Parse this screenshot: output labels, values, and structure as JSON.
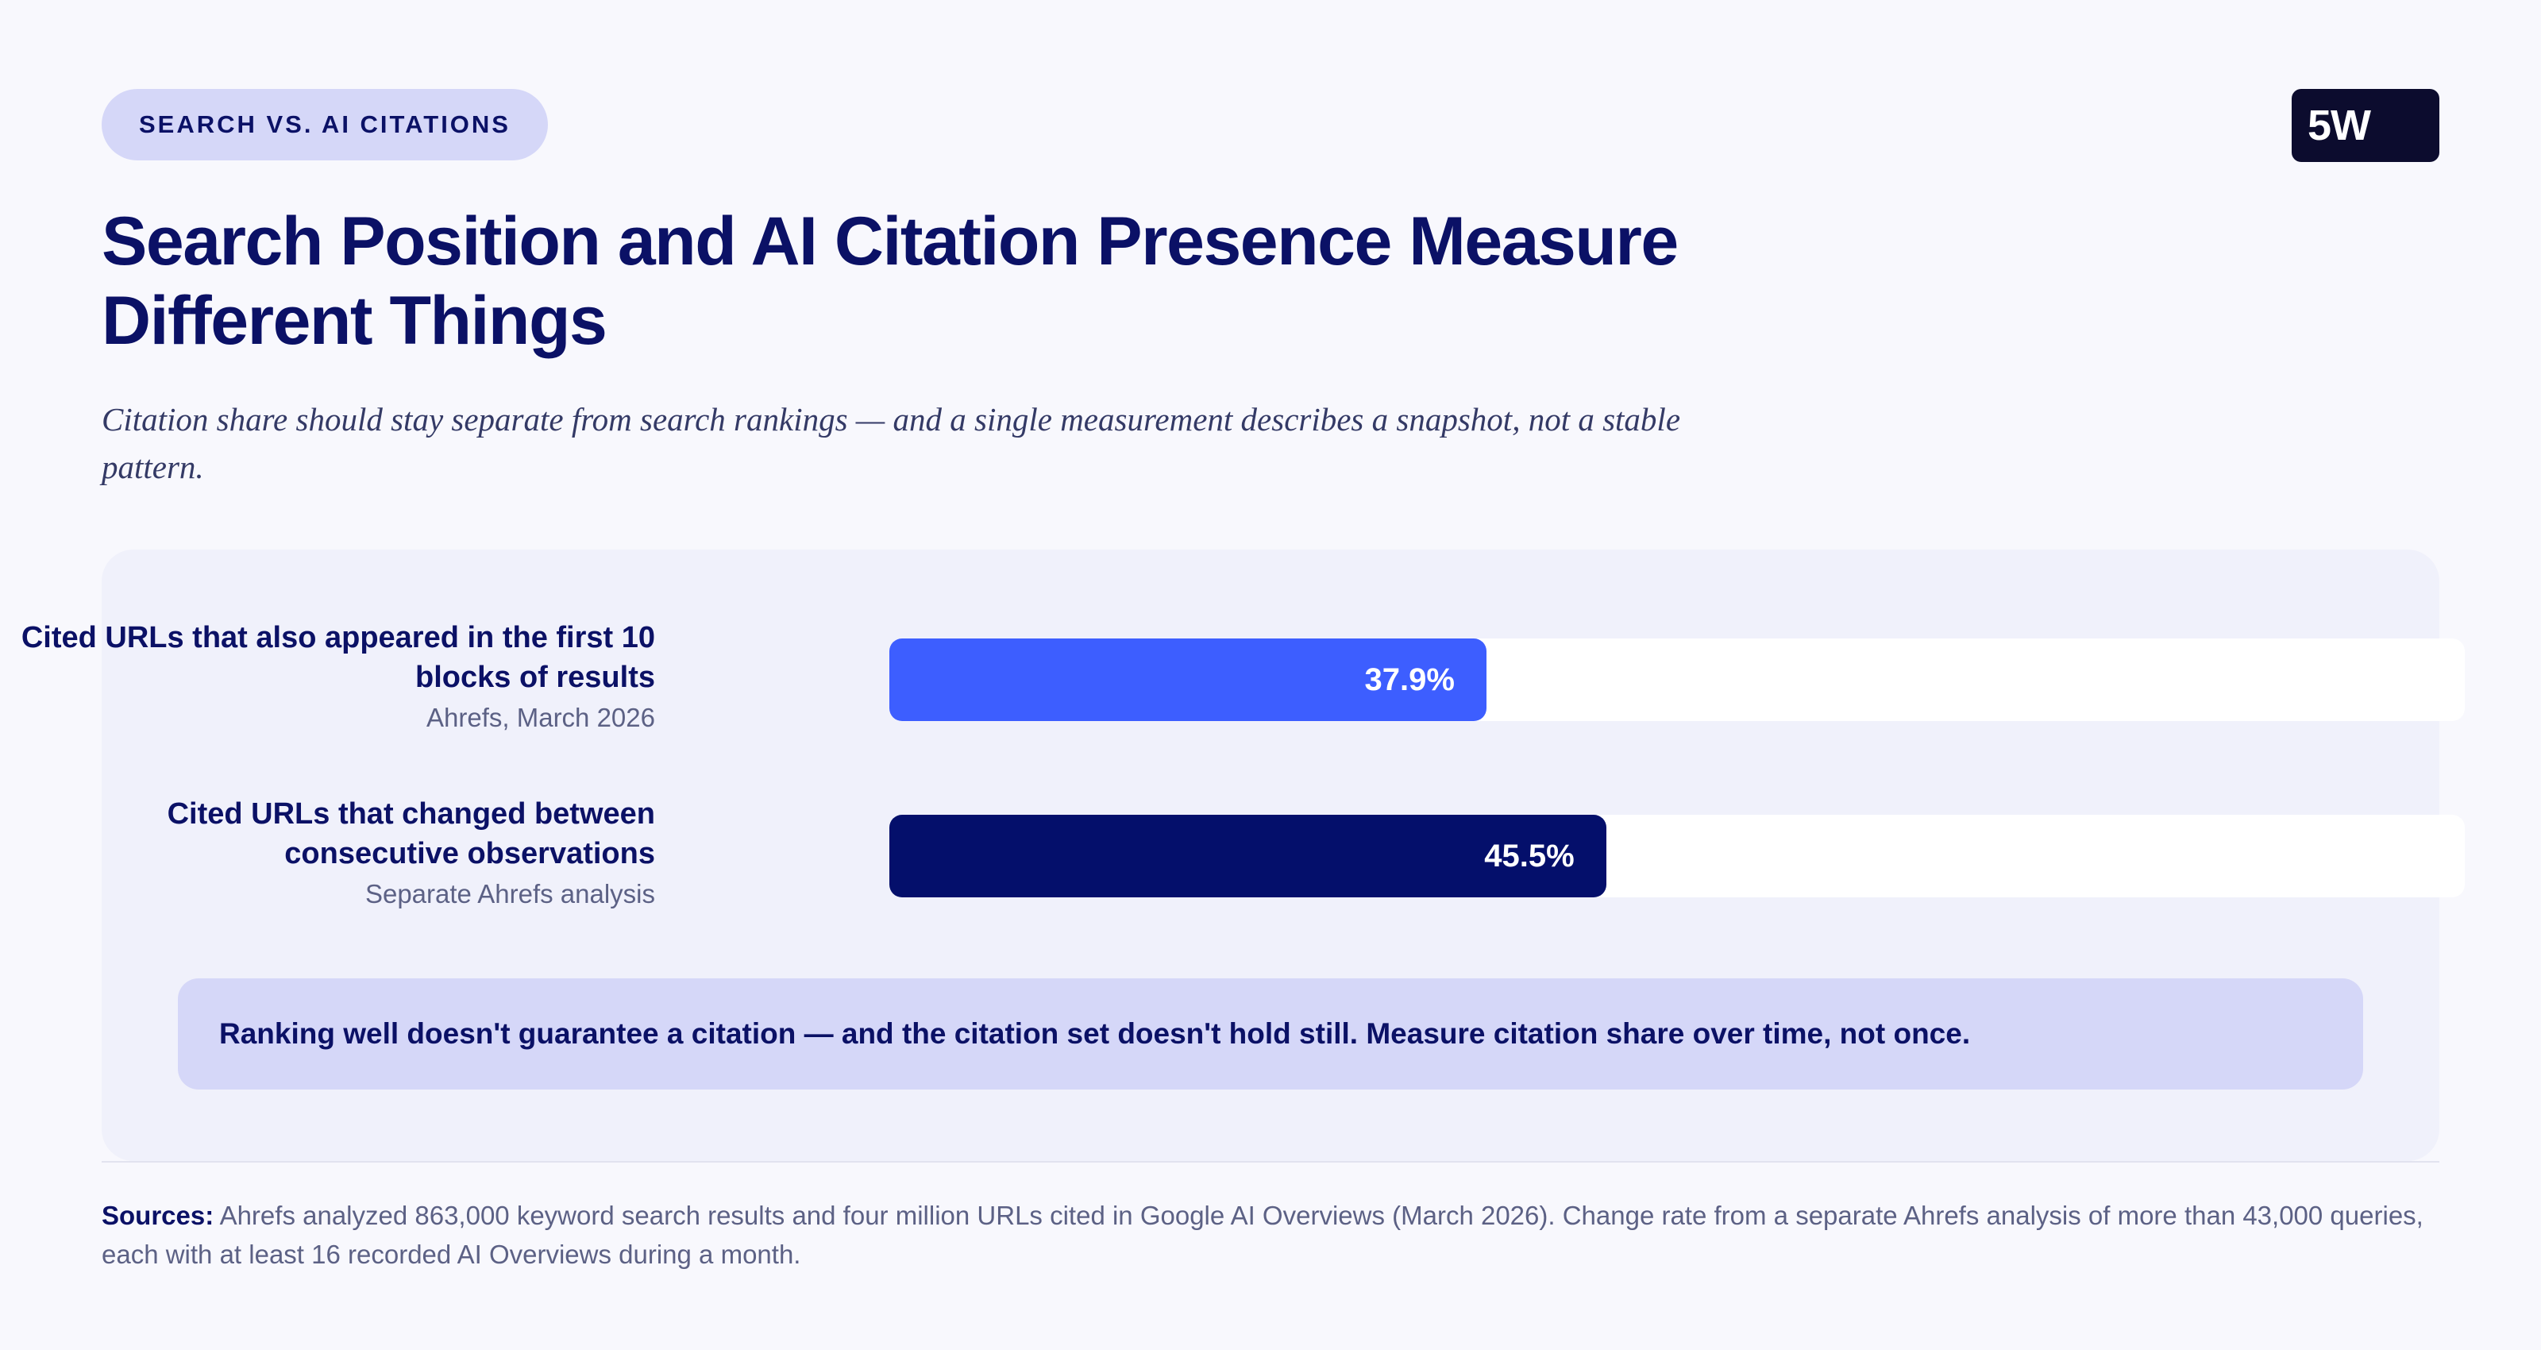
{
  "tag": "SEARCH VS. AI CITATIONS",
  "logo": "5W",
  "title": "Search Position and AI Citation Presence Measure Different Things",
  "subtitle": "Citation share should stay separate from search rankings — and a single measurement describes a snapshot, not a stable pattern.",
  "colors": {
    "bar1": "#3d5eff",
    "bar2": "#040f6b"
  },
  "chart_data": {
    "type": "bar",
    "orientation": "horizontal",
    "xlim": [
      0,
      100
    ],
    "unit": "%",
    "bars": [
      {
        "label": "Cited URLs that also appeared in the first 10 blocks of results",
        "source": "Ahrefs, March 2026",
        "value": 37.9,
        "value_label": "37.9%",
        "color": "#3d5eff"
      },
      {
        "label": "Cited URLs that changed between consecutive observations",
        "source": "Separate Ahrefs analysis",
        "value": 45.5,
        "value_label": "45.5%",
        "color": "#040f6b"
      }
    ]
  },
  "callout": "Ranking well doesn't guarantee a citation — and the citation set doesn't hold still. Measure citation share over time, not once.",
  "sources": {
    "label": "Sources:",
    "text": " Ahrefs analyzed 863,000 keyword search results and four million URLs cited in Google AI Overviews (March 2026). Change rate from a separate Ahrefs analysis of more than 43,000 queries, each with at least 16 recorded AI Overviews during a month."
  }
}
